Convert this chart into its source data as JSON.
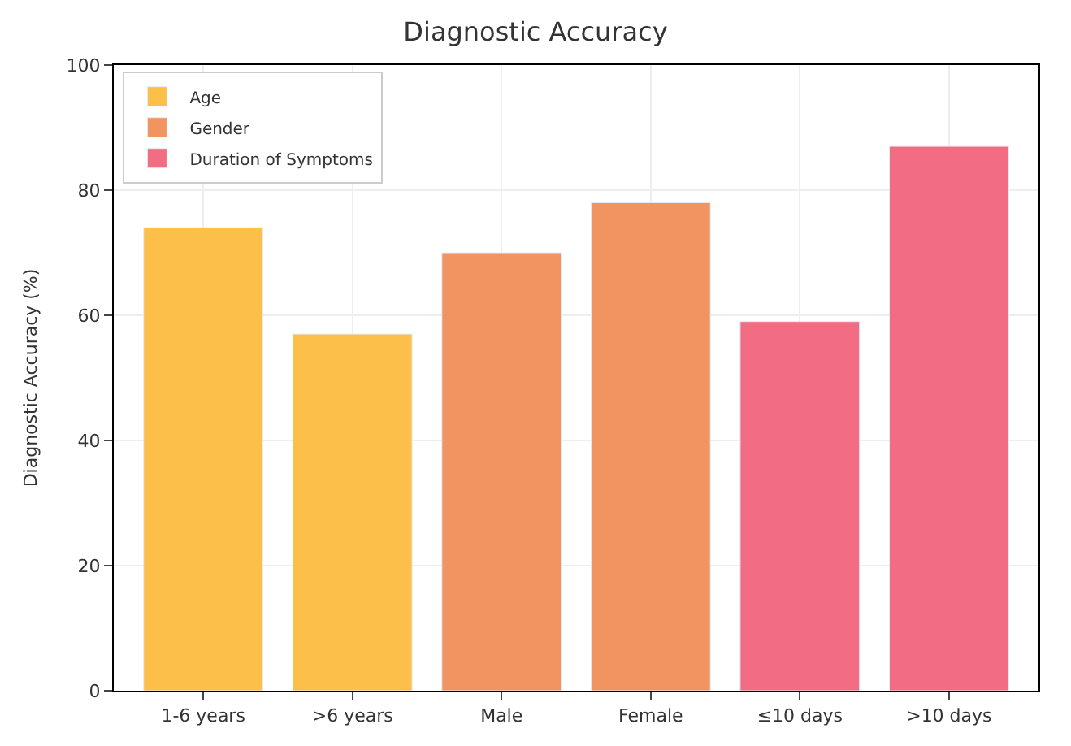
{
  "chart_data": {
    "type": "bar",
    "title": "Diagnostic Accuracy",
    "ylabel": "Diagnostic Accuracy (%)",
    "categories": [
      "1-6 years",
      ">6 years",
      "Male",
      "Female",
      "≤10 days",
      ">10 days"
    ],
    "series": [
      {
        "name": "Age",
        "color": "#fbbf4a",
        "values": [
          74,
          57,
          null,
          null,
          null,
          null
        ]
      },
      {
        "name": "Gender",
        "color": "#f19462",
        "values": [
          null,
          null,
          70,
          78,
          null,
          null
        ]
      },
      {
        "name": "Duration of Symptoms",
        "color": "#f26c84",
        "values": [
          null,
          null,
          null,
          null,
          59,
          87
        ]
      }
    ],
    "ylim": [
      0,
      100
    ],
    "yticks": [
      0,
      20,
      40,
      60,
      80,
      100
    ],
    "grid": true,
    "legend": "top left"
  }
}
